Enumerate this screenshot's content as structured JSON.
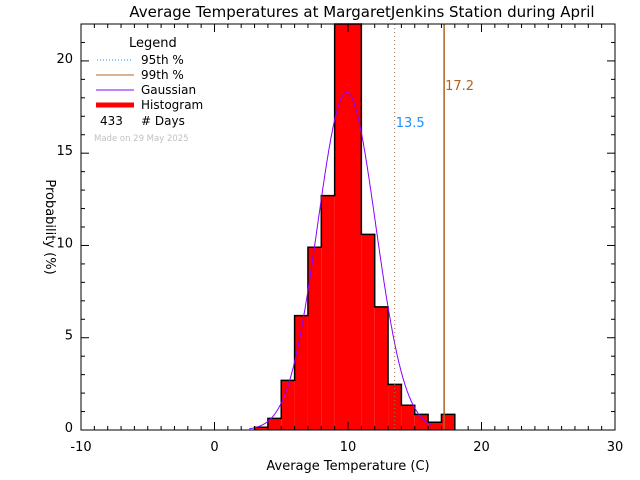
{
  "chart_data": {
    "type": "bar",
    "title": "Average Temperatures at MargaretJenkins Station during April",
    "xlabel": "Average Temperature (C)",
    "ylabel": "Probability  (%)",
    "xlim": [
      -10,
      30
    ],
    "ylim": [
      0,
      22
    ],
    "xticks": [
      -10,
      0,
      10,
      20,
      30
    ],
    "yticks": [
      0,
      5,
      10,
      15,
      20
    ],
    "grid": false,
    "legend_placement": "top-left",
    "histogram": {
      "bin_edges": [
        3,
        4,
        5,
        6,
        7,
        8,
        9,
        10,
        11,
        12,
        13,
        14,
        15,
        16,
        17,
        18
      ],
      "values": [
        0.15,
        0.63,
        2.69,
        6.2,
        9.9,
        12.7,
        22.4,
        22.2,
        10.6,
        6.67,
        2.47,
        1.34,
        0.85,
        0.42,
        0.85
      ]
    },
    "gaussian": {
      "mean": 9.9,
      "peak": 18.3,
      "sigma": 2.18
    },
    "percentiles": [
      {
        "name": "95th %",
        "value": 13.5,
        "label": "13.5"
      },
      {
        "name": "99th %",
        "value": 17.2,
        "label": "17.2"
      }
    ],
    "legend": {
      "title": "Legend",
      "entries": [
        "95th %",
        "99th %",
        "Gaussian",
        "Histogram"
      ],
      "days_count": "433",
      "days_label": "# Days"
    },
    "annotation": "Made on 29 May 2025",
    "colors": {
      "histogram": "#ff0000",
      "gaussian": "#8a00ff",
      "p95": "#1e8fff",
      "p99": "#b0641e",
      "annotation": "#c0c0c0"
    }
  }
}
